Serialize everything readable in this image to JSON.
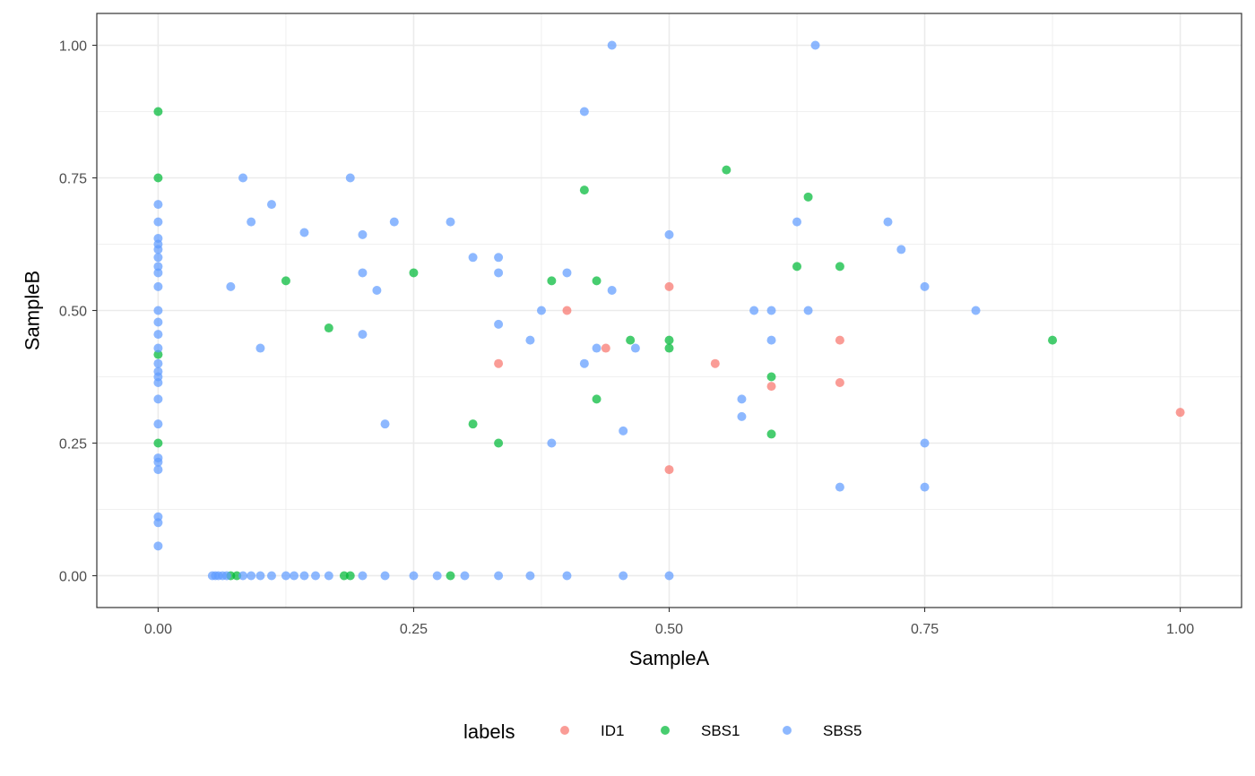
{
  "chart_data": {
    "type": "scatter",
    "title": "",
    "xlabel": "SampleA",
    "ylabel": "SampleB",
    "xlim": [
      -0.06,
      1.06
    ],
    "ylim": [
      -0.06,
      1.06
    ],
    "x_ticks": [
      "0.00",
      "0.25",
      "0.50",
      "0.75",
      "1.00"
    ],
    "y_ticks": [
      "0.00",
      "0.25",
      "0.50",
      "0.75",
      "1.00"
    ],
    "grid": true,
    "legend": {
      "title": "labels",
      "placement": "bottom"
    },
    "series": [
      {
        "name": "ID1",
        "color": "#F8766D",
        "points": [
          [
            0.4,
            0.5
          ],
          [
            0.438,
            0.429
          ],
          [
            0.333,
            0.4
          ],
          [
            0.5,
            0.545
          ],
          [
            0.545,
            0.4
          ],
          [
            0.6,
            0.357
          ],
          [
            0.667,
            0.444
          ],
          [
            0.667,
            0.364
          ],
          [
            0.5,
            0.2
          ],
          [
            1.0,
            0.308
          ]
        ]
      },
      {
        "name": "SBS1",
        "color": "#00BA38",
        "points": [
          [
            0.0,
            0.875
          ],
          [
            0.0,
            0.75
          ],
          [
            0.0,
            0.417
          ],
          [
            0.0,
            0.25
          ],
          [
            0.125,
            0.556
          ],
          [
            0.167,
            0.467
          ],
          [
            0.25,
            0.571
          ],
          [
            0.308,
            0.286
          ],
          [
            0.333,
            0.25
          ],
          [
            0.385,
            0.556
          ],
          [
            0.417,
            0.727
          ],
          [
            0.429,
            0.556
          ],
          [
            0.429,
            0.333
          ],
          [
            0.462,
            0.444
          ],
          [
            0.5,
            0.444
          ],
          [
            0.5,
            0.429
          ],
          [
            0.556,
            0.765
          ],
          [
            0.6,
            0.375
          ],
          [
            0.6,
            0.267
          ],
          [
            0.625,
            0.583
          ],
          [
            0.636,
            0.714
          ],
          [
            0.667,
            0.583
          ],
          [
            0.875,
            0.444
          ],
          [
            0.071,
            0.0
          ],
          [
            0.077,
            0.0
          ],
          [
            0.182,
            0.0
          ],
          [
            0.188,
            0.0
          ],
          [
            0.286,
            0.0
          ]
        ]
      },
      {
        "name": "SBS5",
        "color": "#619CFF",
        "points": [
          [
            0.444,
            1.0
          ],
          [
            0.643,
            1.0
          ],
          [
            0.417,
            0.875
          ],
          [
            0.083,
            0.75
          ],
          [
            0.188,
            0.75
          ],
          [
            0.111,
            0.7
          ],
          [
            0.091,
            0.667
          ],
          [
            0.231,
            0.667
          ],
          [
            0.286,
            0.667
          ],
          [
            0.143,
            0.647
          ],
          [
            0.2,
            0.643
          ],
          [
            0.5,
            0.643
          ],
          [
            0.625,
            0.667
          ],
          [
            0.714,
            0.667
          ],
          [
            0.727,
            0.615
          ],
          [
            0.308,
            0.6
          ],
          [
            0.333,
            0.6
          ],
          [
            0.2,
            0.571
          ],
          [
            0.333,
            0.571
          ],
          [
            0.4,
            0.571
          ],
          [
            0.071,
            0.545
          ],
          [
            0.214,
            0.538
          ],
          [
            0.444,
            0.538
          ],
          [
            0.75,
            0.545
          ],
          [
            0.375,
            0.5
          ],
          [
            0.583,
            0.5
          ],
          [
            0.6,
            0.5
          ],
          [
            0.636,
            0.5
          ],
          [
            0.8,
            0.5
          ],
          [
            0.333,
            0.474
          ],
          [
            0.2,
            0.455
          ],
          [
            0.364,
            0.444
          ],
          [
            0.6,
            0.444
          ],
          [
            0.1,
            0.429
          ],
          [
            0.429,
            0.429
          ],
          [
            0.467,
            0.429
          ],
          [
            0.417,
            0.4
          ],
          [
            0.571,
            0.333
          ],
          [
            0.571,
            0.3
          ],
          [
            0.222,
            0.286
          ],
          [
            0.455,
            0.273
          ],
          [
            0.385,
            0.25
          ],
          [
            0.75,
            0.25
          ],
          [
            0.667,
            0.167
          ],
          [
            0.75,
            0.167
          ],
          [
            0.0,
            0.7
          ],
          [
            0.0,
            0.667
          ],
          [
            0.0,
            0.636
          ],
          [
            0.0,
            0.625
          ],
          [
            0.0,
            0.615
          ],
          [
            0.0,
            0.6
          ],
          [
            0.0,
            0.583
          ],
          [
            0.0,
            0.571
          ],
          [
            0.0,
            0.545
          ],
          [
            0.0,
            0.5
          ],
          [
            0.0,
            0.478
          ],
          [
            0.0,
            0.455
          ],
          [
            0.0,
            0.429
          ],
          [
            0.0,
            0.4
          ],
          [
            0.0,
            0.385
          ],
          [
            0.0,
            0.375
          ],
          [
            0.0,
            0.364
          ],
          [
            0.0,
            0.333
          ],
          [
            0.0,
            0.286
          ],
          [
            0.0,
            0.222
          ],
          [
            0.0,
            0.214
          ],
          [
            0.0,
            0.2
          ],
          [
            0.0,
            0.111
          ],
          [
            0.0,
            0.1
          ],
          [
            0.0,
            0.056
          ],
          [
            0.053,
            0.0
          ],
          [
            0.056,
            0.0
          ],
          [
            0.059,
            0.0
          ],
          [
            0.063,
            0.0
          ],
          [
            0.067,
            0.0
          ],
          [
            0.083,
            0.0
          ],
          [
            0.091,
            0.0
          ],
          [
            0.1,
            0.0
          ],
          [
            0.111,
            0.0
          ],
          [
            0.125,
            0.0
          ],
          [
            0.133,
            0.0
          ],
          [
            0.143,
            0.0
          ],
          [
            0.154,
            0.0
          ],
          [
            0.167,
            0.0
          ],
          [
            0.2,
            0.0
          ],
          [
            0.222,
            0.0
          ],
          [
            0.25,
            0.0
          ],
          [
            0.273,
            0.0
          ],
          [
            0.3,
            0.0
          ],
          [
            0.333,
            0.0
          ],
          [
            0.364,
            0.0
          ],
          [
            0.4,
            0.0
          ],
          [
            0.455,
            0.0
          ],
          [
            0.5,
            0.0
          ]
        ]
      }
    ]
  }
}
